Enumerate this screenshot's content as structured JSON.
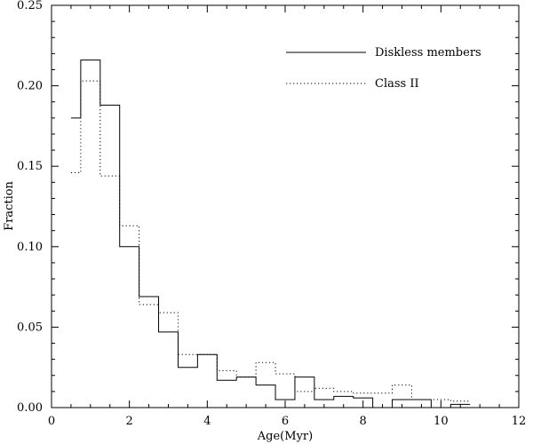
{
  "chart_data": {
    "type": "line",
    "xlabel": "Age(Myr)",
    "ylabel": "Fraction",
    "xlim": [
      0,
      12
    ],
    "ylim": [
      0,
      0.25
    ],
    "xticks": [
      0,
      2,
      4,
      6,
      8,
      10,
      12
    ],
    "yticks": [
      0.0,
      0.05,
      0.1,
      0.15,
      0.2,
      0.25
    ],
    "xtick_labels": [
      "0",
      "2",
      "4",
      "6",
      "8",
      "10",
      "12"
    ],
    "ytick_labels": [
      "0.00",
      "0.05",
      "0.10",
      "0.15",
      "0.20",
      "0.25"
    ],
    "bin_edges": [
      0.5,
      0.75,
      1.25,
      1.75,
      2.25,
      2.75,
      3.25,
      3.75,
      4.25,
      4.75,
      5.25,
      5.75,
      6.25,
      6.75,
      7.25,
      7.75,
      8.25,
      8.75,
      9.25,
      9.75,
      10.25,
      10.75
    ],
    "legend_position": "top-right",
    "grid": false,
    "series": [
      {
        "name": "Diskless members",
        "style": "solid",
        "values": [
          0.18,
          0.216,
          0.188,
          0.1,
          0.069,
          0.047,
          0.025,
          0.033,
          0.017,
          0.019,
          0.014,
          0.005,
          0.019,
          0.005,
          0.007,
          0.006,
          0.0,
          0.005,
          0.005,
          0.0,
          0.002
        ]
      },
      {
        "name": "Class II",
        "style": "dotted",
        "values": [
          0.146,
          0.203,
          0.144,
          0.113,
          0.064,
          0.059,
          0.033,
          0.033,
          0.023,
          0.019,
          0.028,
          0.021,
          0.01,
          0.012,
          0.01,
          0.009,
          0.009,
          0.014,
          0.005,
          0.005,
          0.004
        ]
      }
    ]
  }
}
